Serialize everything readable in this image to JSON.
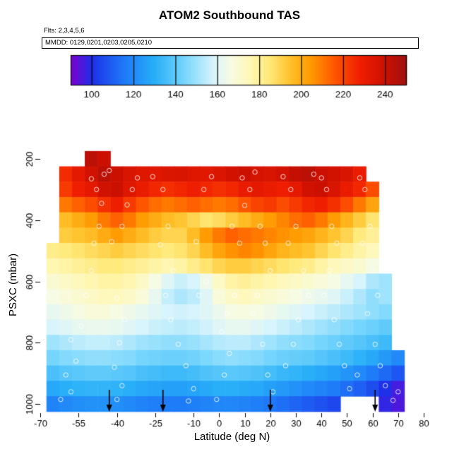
{
  "title": "ATOM2 Southbound TAS",
  "subtitle_flts": "Flts: 2,3,4,5,6",
  "subtitle_mmdd": "MMDD: 0129,0201,0203,0205,0210",
  "chart_data": {
    "type": "heatmap",
    "title": "ATOM2 Southbound TAS",
    "xlabel": "Latitude (deg N)",
    "ylabel": "PSXC (mbar)",
    "xlim": [
      -70,
      80
    ],
    "ylim": [
      1040,
      150
    ],
    "y_reversed": true,
    "grid": false,
    "x_ticks": [
      -70,
      -55,
      -40,
      -25,
      -10,
      0,
      10,
      20,
      30,
      40,
      50,
      60,
      70,
      80
    ],
    "y_ticks": [
      200,
      400,
      600,
      800,
      1000
    ],
    "colorbar": {
      "position": "top",
      "ticks": [
        100,
        120,
        140,
        160,
        180,
        200,
        220,
        240
      ],
      "domain": [
        90,
        250
      ],
      "stops": [
        [
          90,
          "#7C00D0"
        ],
        [
          100,
          "#1E30E8"
        ],
        [
          115,
          "#1E78F8"
        ],
        [
          130,
          "#28AFF8"
        ],
        [
          145,
          "#7CD8FC"
        ],
        [
          158,
          "#D8F4FC"
        ],
        [
          166,
          "#F6FBE4"
        ],
        [
          175,
          "#FFF8B8"
        ],
        [
          185,
          "#FFE878"
        ],
        [
          195,
          "#FFC028"
        ],
        [
          205,
          "#FF9800"
        ],
        [
          215,
          "#FF5A00"
        ],
        [
          228,
          "#F01E00"
        ],
        [
          240,
          "#CC1000"
        ],
        [
          250,
          "#A01010"
        ]
      ]
    },
    "lat_centers": [
      -65,
      -60,
      -55,
      -50,
      -45,
      -40,
      -35,
      -30,
      -25,
      -20,
      -15,
      -10,
      -5,
      0,
      5,
      10,
      15,
      20,
      25,
      30,
      35,
      40,
      45,
      50,
      55,
      60,
      65,
      70
    ],
    "pressure_levels": [
      200,
      250,
      300,
      350,
      400,
      450,
      500,
      550,
      600,
      650,
      700,
      750,
      800,
      850,
      900,
      950,
      1000
    ],
    "values": [
      [
        null,
        null,
        null,
        244,
        240,
        null,
        null,
        null,
        null,
        null,
        null,
        null,
        null,
        null,
        null,
        null,
        null,
        null,
        null,
        null,
        null,
        null,
        null,
        null,
        null,
        null,
        null,
        null
      ],
      [
        null,
        225,
        232,
        238,
        244,
        240,
        236,
        234,
        233,
        235,
        236,
        234,
        233,
        235,
        238,
        240,
        237,
        236,
        238,
        242,
        244,
        240,
        238,
        236,
        230,
        null,
        null,
        null
      ],
      [
        null,
        222,
        228,
        232,
        238,
        240,
        234,
        230,
        226,
        224,
        226,
        228,
        226,
        224,
        226,
        230,
        232,
        230,
        228,
        232,
        238,
        240,
        236,
        230,
        226,
        218,
        null,
        null
      ],
      [
        null,
        210,
        214,
        218,
        224,
        228,
        222,
        216,
        212,
        210,
        212,
        214,
        212,
        210,
        212,
        216,
        220,
        222,
        218,
        222,
        226,
        228,
        224,
        218,
        210,
        202,
        null,
        null
      ],
      [
        null,
        196,
        200,
        204,
        210,
        214,
        210,
        204,
        200,
        196,
        194,
        190,
        186,
        188,
        192,
        196,
        200,
        204,
        208,
        212,
        214,
        210,
        204,
        198,
        192,
        186,
        null,
        null
      ],
      [
        null,
        192,
        194,
        196,
        200,
        204,
        200,
        196,
        192,
        190,
        190,
        196,
        204,
        210,
        214,
        212,
        210,
        208,
        206,
        204,
        202,
        198,
        194,
        190,
        184,
        180,
        null,
        null
      ],
      [
        182,
        184,
        186,
        188,
        190,
        192,
        190,
        188,
        186,
        184,
        186,
        190,
        196,
        202,
        206,
        208,
        206,
        202,
        198,
        196,
        194,
        190,
        186,
        182,
        178,
        174,
        null,
        null
      ],
      [
        176,
        178,
        180,
        182,
        184,
        184,
        182,
        180,
        178,
        176,
        178,
        182,
        186,
        190,
        192,
        192,
        190,
        188,
        186,
        184,
        182,
        178,
        174,
        172,
        170,
        166,
        null,
        null
      ],
      [
        170,
        172,
        174,
        176,
        178,
        178,
        176,
        172,
        166,
        160,
        156,
        158,
        164,
        172,
        178,
        180,
        178,
        176,
        174,
        172,
        170,
        168,
        166,
        162,
        158,
        152,
        150,
        null
      ],
      [
        166,
        168,
        170,
        172,
        174,
        174,
        172,
        168,
        162,
        155,
        152,
        154,
        160,
        168,
        172,
        174,
        172,
        170,
        168,
        166,
        164,
        162,
        160,
        156,
        152,
        148,
        150,
        null
      ],
      [
        162,
        164,
        166,
        168,
        168,
        166,
        164,
        162,
        160,
        158,
        157,
        158,
        160,
        163,
        166,
        167,
        166,
        164,
        162,
        160,
        158,
        156,
        154,
        152,
        150,
        148,
        146,
        null
      ],
      [
        158,
        160,
        162,
        163,
        163,
        162,
        160,
        158,
        156,
        155,
        154,
        155,
        157,
        160,
        162,
        162,
        160,
        158,
        156,
        154,
        152,
        150,
        148,
        146,
        144,
        142,
        140,
        null
      ],
      [
        150,
        152,
        154,
        155,
        155,
        154,
        152,
        150,
        149,
        148,
        148,
        149,
        151,
        153,
        154,
        154,
        152,
        150,
        148,
        147,
        146,
        144,
        142,
        140,
        138,
        136,
        134,
        null
      ],
      [
        144,
        146,
        147,
        148,
        148,
        147,
        146,
        144,
        143,
        142,
        142,
        143,
        145,
        147,
        148,
        147,
        146,
        144,
        142,
        141,
        140,
        138,
        136,
        134,
        131,
        128,
        124,
        120
      ],
      [
        136,
        138,
        139,
        140,
        140,
        139,
        138,
        136,
        135,
        134,
        134,
        135,
        137,
        138,
        139,
        138,
        137,
        135,
        133,
        132,
        130,
        128,
        126,
        123,
        120,
        116,
        112,
        108
      ],
      [
        128,
        130,
        131,
        132,
        132,
        131,
        130,
        128,
        127,
        126,
        126,
        127,
        128,
        130,
        130,
        129,
        128,
        126,
        124,
        122,
        120,
        118,
        116,
        113,
        110,
        106,
        100,
        96
      ],
      [
        118,
        120,
        121,
        122,
        122,
        121,
        120,
        118,
        117,
        116,
        116,
        117,
        118,
        119,
        119,
        118,
        117,
        115,
        113,
        111,
        109,
        107,
        105,
        null,
        null,
        null,
        98,
        95
      ]
    ],
    "points": [
      [
        -62,
        985
      ],
      [
        -58,
        960
      ],
      [
        -60,
        905
      ],
      [
        -56,
        860
      ],
      [
        -58,
        790
      ],
      [
        -54,
        745
      ],
      [
        -52,
        645
      ],
      [
        -50,
        565
      ],
      [
        -49,
        475
      ],
      [
        -47,
        420
      ],
      [
        -46,
        345
      ],
      [
        -48,
        300
      ],
      [
        -50,
        265
      ],
      [
        -45,
        250
      ],
      [
        -43,
        238
      ],
      [
        -40,
        985
      ],
      [
        -38,
        940
      ],
      [
        -41,
        880
      ],
      [
        -39,
        800
      ],
      [
        -37,
        725
      ],
      [
        -40,
        655
      ],
      [
        -42,
        470
      ],
      [
        -38,
        420
      ],
      [
        -36,
        350
      ],
      [
        -34,
        300
      ],
      [
        -32,
        262
      ],
      [
        -26,
        258
      ],
      [
        -22,
        300
      ],
      [
        -20,
        420
      ],
      [
        -23,
        480
      ],
      [
        -18,
        565
      ],
      [
        -21,
        645
      ],
      [
        -19,
        725
      ],
      [
        -16,
        805
      ],
      [
        -13,
        875
      ],
      [
        -10,
        950
      ],
      [
        -12,
        990
      ],
      [
        -8,
        645
      ],
      [
        -5,
        600
      ],
      [
        -9,
        470
      ],
      [
        -6,
        300
      ],
      [
        -3,
        258
      ],
      [
        -1,
        985
      ],
      [
        2,
        905
      ],
      [
        4,
        835
      ],
      [
        1,
        765
      ],
      [
        3,
        705
      ],
      [
        6,
        645
      ],
      [
        8,
        475
      ],
      [
        5,
        420
      ],
      [
        10,
        352
      ],
      [
        12,
        300
      ],
      [
        9,
        262
      ],
      [
        14,
        243
      ],
      [
        16,
        420
      ],
      [
        18,
        475
      ],
      [
        20,
        565
      ],
      [
        15,
        645
      ],
      [
        13,
        705
      ],
      [
        17,
        805
      ],
      [
        19,
        905
      ],
      [
        21,
        960
      ],
      [
        25,
        258
      ],
      [
        28,
        300
      ],
      [
        30,
        420
      ],
      [
        27,
        475
      ],
      [
        33,
        565
      ],
      [
        35,
        645
      ],
      [
        31,
        725
      ],
      [
        29,
        805
      ],
      [
        26,
        875
      ],
      [
        37,
        250
      ],
      [
        40,
        262
      ],
      [
        42,
        300
      ],
      [
        44,
        420
      ],
      [
        46,
        475
      ],
      [
        43,
        565
      ],
      [
        41,
        645
      ],
      [
        45,
        725
      ],
      [
        47,
        805
      ],
      [
        49,
        875
      ],
      [
        51,
        950
      ],
      [
        55,
        262
      ],
      [
        57,
        300
      ],
      [
        59,
        420
      ],
      [
        56,
        475
      ],
      [
        60,
        565
      ],
      [
        62,
        645
      ],
      [
        58,
        705
      ],
      [
        61,
        805
      ],
      [
        63,
        875
      ],
      [
        65,
        940
      ],
      [
        68,
        988
      ],
      [
        70,
        960
      ],
      [
        54,
        905
      ]
    ],
    "arrows_lat": [
      -43,
      -22,
      20,
      61
    ]
  }
}
